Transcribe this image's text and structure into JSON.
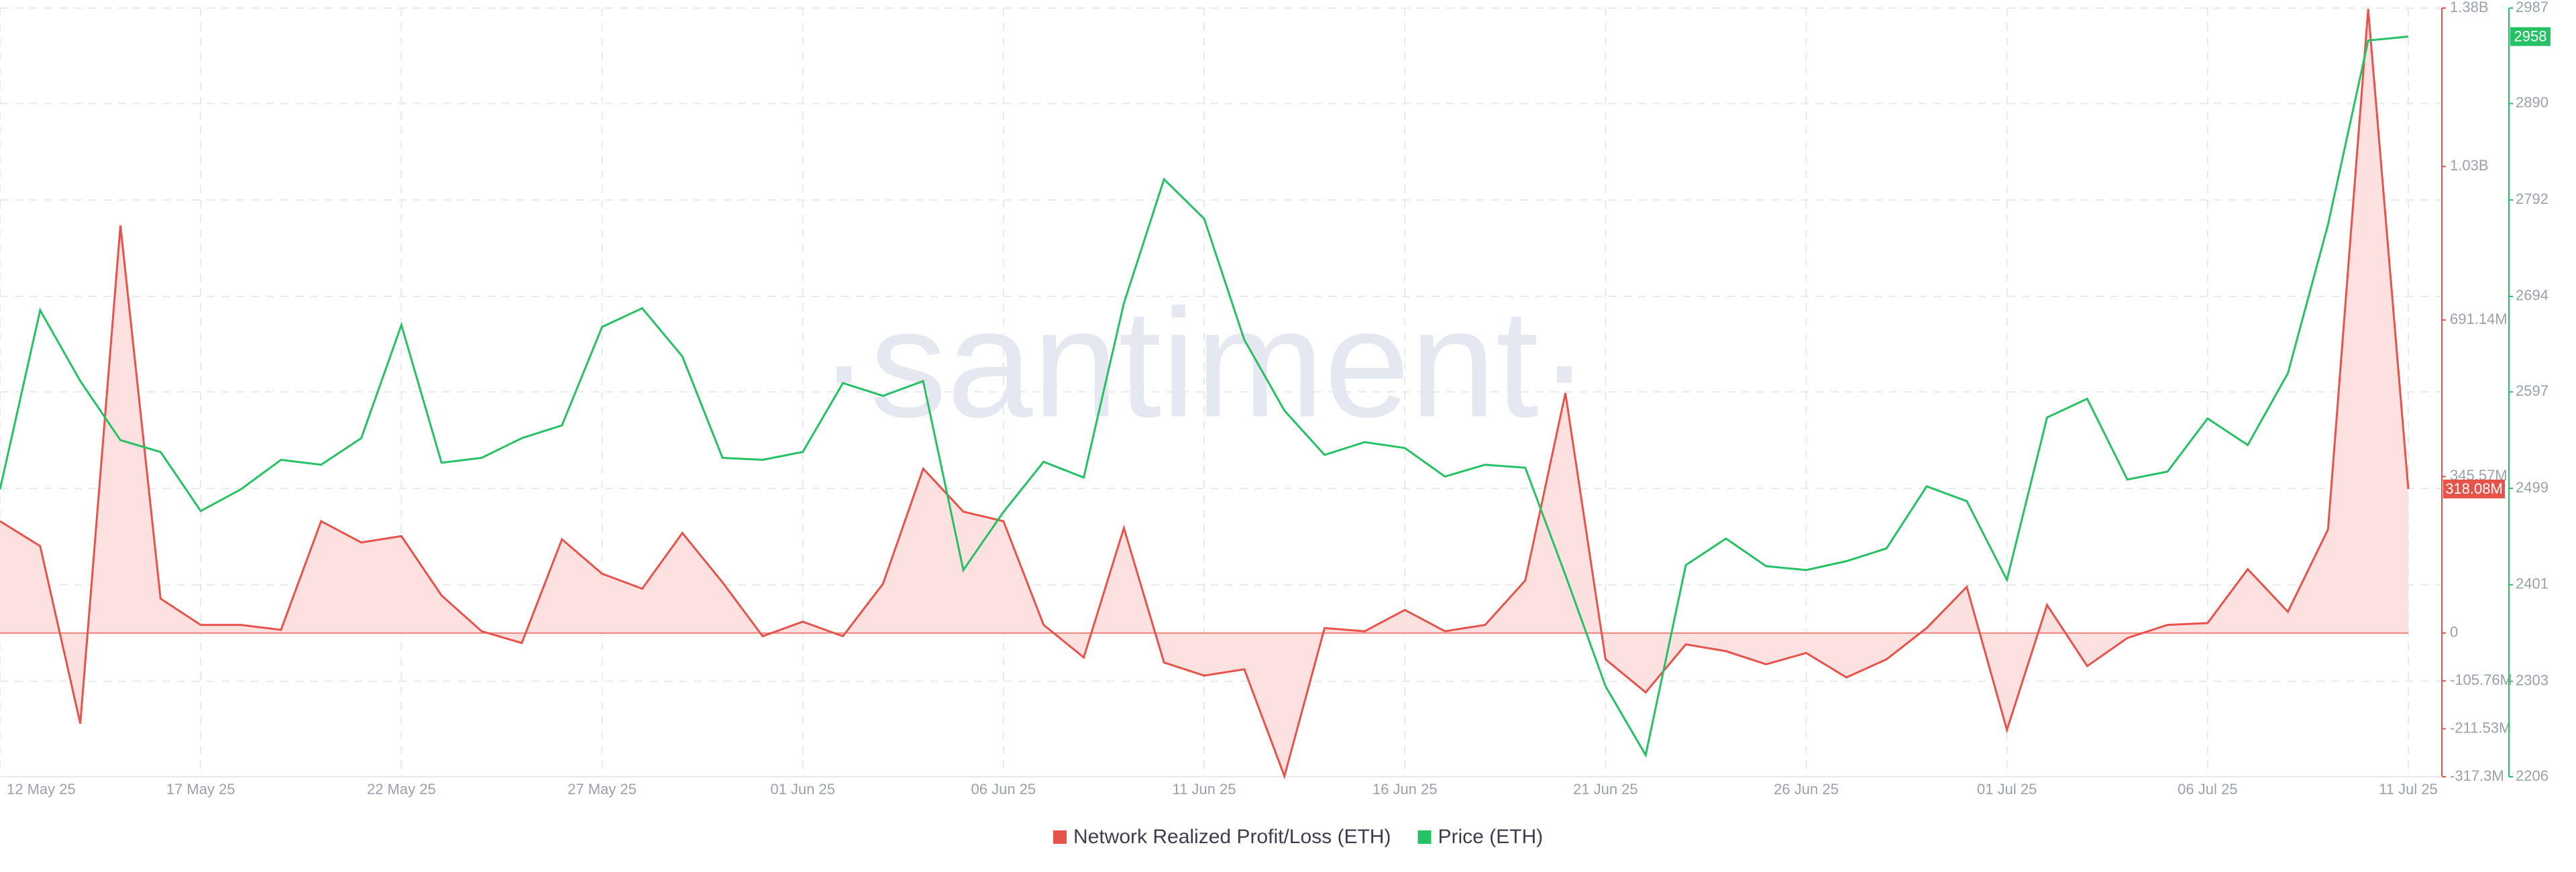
{
  "chart_data": {
    "type": "line",
    "watermark": "·santiment·",
    "categories": [
      "12 May 25",
      null,
      null,
      null,
      null,
      "17 May 25",
      null,
      null,
      null,
      null,
      "22 May 25",
      null,
      null,
      null,
      null,
      "27 May 25",
      null,
      null,
      null,
      null,
      "01 Jun 25",
      null,
      null,
      null,
      null,
      "06 Jun 25",
      null,
      null,
      null,
      null,
      "11 Jun 25",
      null,
      null,
      null,
      null,
      "16 Jun 25",
      null,
      null,
      null,
      null,
      "21 Jun 25",
      null,
      null,
      null,
      null,
      "26 Jun 25",
      null,
      null,
      null,
      null,
      "01 Jul 25",
      null,
      null,
      null,
      null,
      "06 Jul 25",
      null,
      null,
      null,
      null,
      "11 Jul 25"
    ],
    "series": [
      {
        "name": "Network Realized Profit/Loss (ETH)",
        "color": "#e5534b",
        "fill": "#fde0e0",
        "axis": "y",
        "values": [
          247000000,
          192000000,
          -200000000,
          900000000,
          76000000,
          18000000,
          18000000,
          7000000,
          247000000,
          200000000,
          214000000,
          83000000,
          4000000,
          -22000000,
          207000000,
          131000000,
          98000000,
          221000000,
          112000000,
          -7000000,
          25000000,
          -7000000,
          109000000,
          363000000,
          268000000,
          247000000,
          18000000,
          -54000000,
          232000000,
          -65000000,
          -94000000,
          -80000000,
          -316000000,
          11000000,
          4000000,
          51000000,
          4000000,
          18000000,
          116000000,
          530000000,
          -58000000,
          -131000000,
          -25000000,
          -40000000,
          -69000000,
          -44000000,
          -98000000,
          -58000000,
          11000000,
          102000000,
          -214000000,
          62000000,
          -73000000,
          -11000000,
          18000000,
          22000000,
          141000000,
          47000000,
          229000000,
          1378000000,
          318080000
        ],
        "value_labels": [
          null,
          null,
          null,
          null,
          null,
          null,
          null,
          null,
          null,
          null,
          null,
          null,
          null,
          null,
          null,
          null,
          null,
          null,
          null,
          null,
          null,
          null,
          null,
          null,
          null,
          null,
          null,
          null,
          null,
          null,
          null,
          null,
          null,
          null,
          null,
          null,
          null,
          null,
          null,
          null,
          null,
          null,
          null,
          null,
          null,
          null,
          null,
          null,
          null,
          null,
          null,
          null,
          null,
          null,
          null,
          null,
          null,
          null,
          null,
          null,
          "318.08M"
        ]
      },
      {
        "name": "Price (ETH)",
        "color": "#26c165",
        "axis": "y2",
        "values": [
          2498,
          2680,
          2608,
          2548,
          2536,
          2476,
          2498,
          2528,
          2523,
          2550,
          2665,
          2525,
          2530,
          2550,
          2563,
          2663,
          2682,
          2633,
          2530,
          2528,
          2536,
          2606,
          2593,
          2608,
          2416,
          2475,
          2526,
          2510,
          2687,
          2813,
          2773,
          2650,
          2578,
          2533,
          2546,
          2540,
          2511,
          2523,
          2520,
          2411,
          2298,
          2228,
          2421,
          2448,
          2420,
          2416,
          2425,
          2438,
          2501,
          2486,
          2406,
          2571,
          2590,
          2508,
          2516,
          2570,
          2543,
          2616,
          2767,
          2954,
          2958
        ],
        "value_labels": [
          null,
          null,
          null,
          null,
          null,
          null,
          null,
          null,
          null,
          null,
          null,
          null,
          null,
          null,
          null,
          null,
          null,
          null,
          null,
          null,
          null,
          null,
          null,
          null,
          null,
          null,
          null,
          null,
          null,
          null,
          null,
          null,
          null,
          null,
          null,
          null,
          null,
          null,
          null,
          null,
          null,
          null,
          null,
          null,
          null,
          null,
          null,
          null,
          null,
          null,
          null,
          null,
          null,
          null,
          null,
          null,
          null,
          null,
          null,
          null,
          "2958"
        ]
      }
    ],
    "ylim": [
      -317300000,
      1380000000
    ],
    "yticks": [
      {
        "value": -317300000,
        "label": "-317.3M"
      },
      {
        "value": -211530000,
        "label": "-211.53M"
      },
      {
        "value": -105760000,
        "label": "-105.76M"
      },
      0,
      {
        "value": 345570000,
        "label": "345.57M"
      },
      {
        "value": 691140000,
        "label": "691.14M"
      },
      {
        "value": 1030000000,
        "label": "1.03B"
      },
      {
        "value": 1380000000,
        "label": "1.38B"
      }
    ],
    "y2lim": [
      2206,
      2987
    ],
    "y2ticks": [
      2206,
      2303,
      2401,
      2499,
      2597,
      2694,
      2792,
      2890,
      2987
    ],
    "grid": true,
    "legend": "bottom"
  }
}
